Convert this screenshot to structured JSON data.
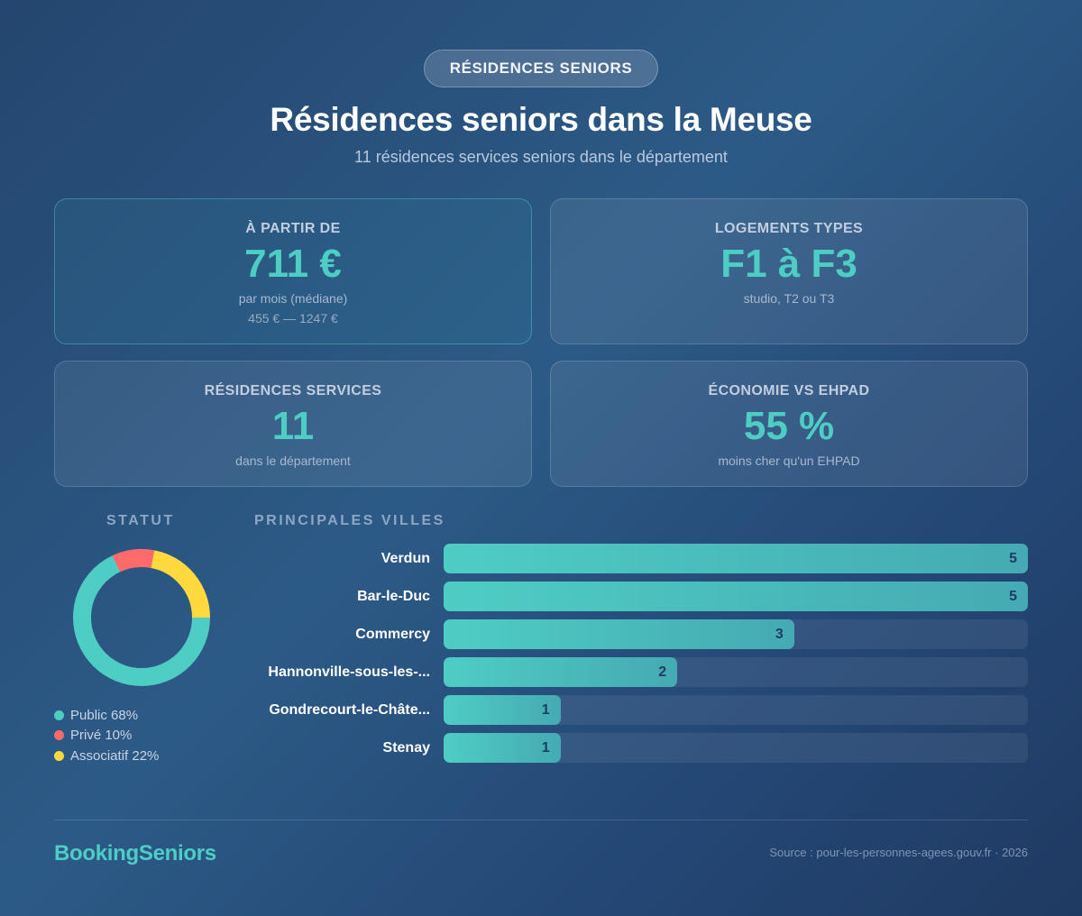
{
  "header": {
    "badge": "RÉSIDENCES SENIORS",
    "title": "Résidences seniors dans la Meuse",
    "subtitle": "11 résidences services seniors dans le département"
  },
  "cards": [
    {
      "label": "À PARTIR DE",
      "value": "711 €",
      "sub": "par mois (médiane)",
      "sub2": "455 € — 1247 €"
    },
    {
      "label": "LOGEMENTS TYPES",
      "value": "F1 à F3",
      "sub": "studio, T2 ou T3"
    },
    {
      "label": "RÉSIDENCES SERVICES",
      "value": "11",
      "sub": "dans le département"
    },
    {
      "label": "ÉCONOMIE VS EHPAD",
      "value": "55 %",
      "sub": "moins cher qu'un EHPAD"
    }
  ],
  "statut": {
    "title": "STATUT",
    "legend": [
      {
        "label": "Public 68%",
        "color": "#4ecdc4"
      },
      {
        "label": "Privé 10%",
        "color": "#ff6b6b"
      },
      {
        "label": "Associatif 22%",
        "color": "#ffd93d"
      }
    ]
  },
  "villes": {
    "title": "PRINCIPALES VILLES",
    "items": [
      {
        "label": "Verdun",
        "value": "5"
      },
      {
        "label": "Bar-le-Duc",
        "value": "5"
      },
      {
        "label": "Commercy",
        "value": "3"
      },
      {
        "label": "Hannonville-sous-les-...",
        "value": "2"
      },
      {
        "label": "Gondrecourt-le-Châte...",
        "value": "1"
      },
      {
        "label": "Stenay",
        "value": "1"
      }
    ]
  },
  "footer": {
    "brand": "BookingSeniors",
    "source": "Source : pour-les-personnes-agees.gouv.fr · 2026"
  },
  "colors": {
    "accent": "#4ecdc4",
    "public": "#4ecdc4",
    "prive": "#ff6b6b",
    "associatif": "#ffd93d"
  },
  "chart_data": [
    {
      "type": "pie",
      "title": "STATUT",
      "categories": [
        "Public",
        "Privé",
        "Associatif"
      ],
      "values": [
        68,
        10,
        22
      ],
      "colors": [
        "#4ecdc4",
        "#ff6b6b",
        "#ffd93d"
      ],
      "donut": true,
      "legend_position": "bottom"
    },
    {
      "type": "bar",
      "orientation": "horizontal",
      "title": "PRINCIPALES VILLES",
      "categories": [
        "Verdun",
        "Bar-le-Duc",
        "Commercy",
        "Hannonville-sous-les-...",
        "Gondrecourt-le-Châte...",
        "Stenay"
      ],
      "values": [
        5,
        5,
        3,
        2,
        1,
        1
      ],
      "xlim": [
        0,
        5
      ],
      "grid": false,
      "data_labels": true
    }
  ]
}
